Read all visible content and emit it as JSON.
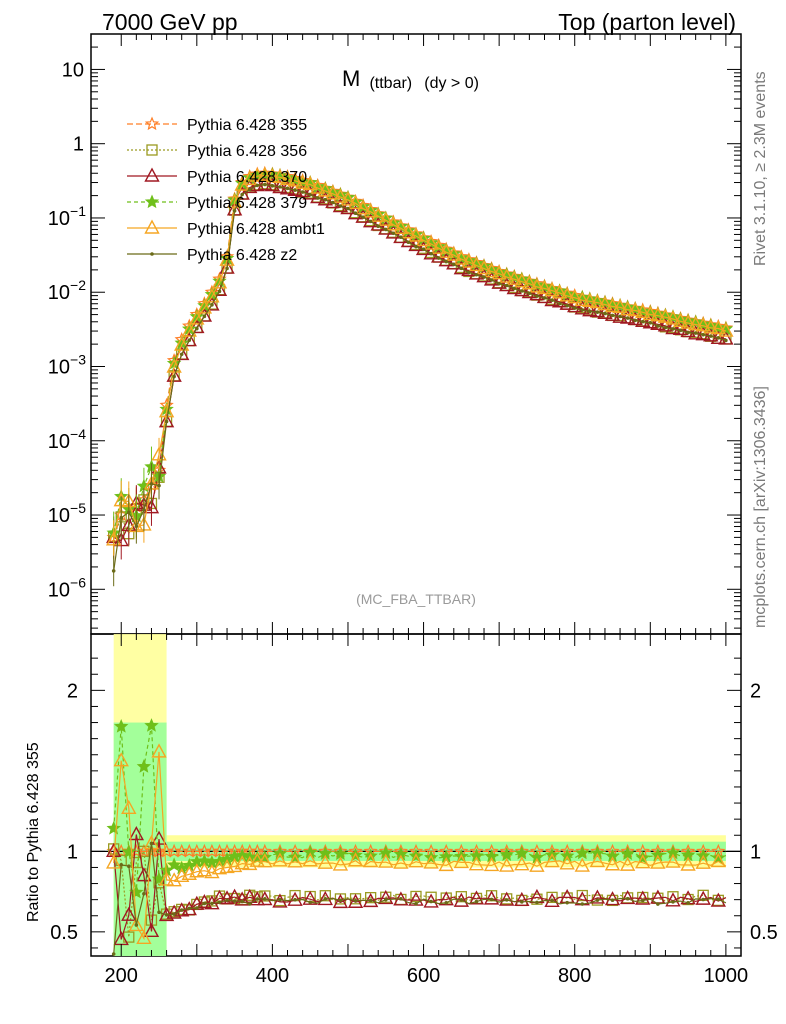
{
  "header": {
    "left": "7000 GeV pp",
    "right": "Top (parton level)"
  },
  "side_text": {
    "rivet": "Rivet 3.1.10, ≥ 2.3M events",
    "mcplots": "mcplots.cern.ch [arXiv:1306.3436]"
  },
  "chart_data": {
    "type": "line",
    "title": "M",
    "title_sub": "(ttbar)",
    "title_cond": "(dy > 0)",
    "analysis_tag": "(MC_FBA_TTBAR)",
    "xlabel": "",
    "ylabel_ratio": "Ratio to Pythia 6.428 355",
    "xlim": [
      160,
      1020
    ],
    "ylim_main": [
      2.5e-07,
      30
    ],
    "ylim_ratio": [
      0.35,
      2.35
    ],
    "x_ticks": [
      "200",
      "400",
      "600",
      "800",
      "1000"
    ],
    "y_ticks_main": [
      {
        "value": 10,
        "mant": "10",
        "exp": ""
      },
      {
        "value": 1,
        "mant": "1",
        "exp": ""
      },
      {
        "value": 0.1,
        "mant": "10",
        "exp": "−1"
      },
      {
        "value": 0.01,
        "mant": "10",
        "exp": "−2"
      },
      {
        "value": 0.001,
        "mant": "10",
        "exp": "−3"
      },
      {
        "value": 0.0001,
        "mant": "10",
        "exp": "−4"
      },
      {
        "value": 1e-05,
        "mant": "10",
        "exp": "−5"
      },
      {
        "value": 1e-06,
        "mant": "10",
        "exp": "−6"
      }
    ],
    "y_ticks_ratio": [
      "0.5",
      "1",
      "2"
    ],
    "reference": {
      "name": "Pythia 6.428 355",
      "x": [
        190,
        200,
        210,
        220,
        230,
        240,
        250,
        260,
        270,
        280,
        290,
        300,
        310,
        320,
        330,
        340,
        350,
        360,
        370,
        380,
        390,
        400,
        420,
        450,
        500,
        550,
        600,
        650,
        700,
        750,
        800,
        850,
        900,
        950,
        1000
      ],
      "y": [
        5e-06,
        1e-05,
        1.2e-05,
        1.3e-05,
        1.6e-05,
        2.5e-05,
        4e-05,
        0.0003,
        0.0012,
        0.0023,
        0.0035,
        0.005,
        0.007,
        0.01,
        0.015,
        0.03,
        0.18,
        0.3,
        0.36,
        0.39,
        0.4,
        0.39,
        0.36,
        0.3,
        0.19,
        0.1,
        0.054,
        0.03,
        0.019,
        0.013,
        0.009,
        0.007,
        0.0055,
        0.0042,
        0.0033
      ]
    },
    "series": [
      {
        "name": "Pythia 6.428 355",
        "color": "#ff7f27",
        "marker": "star-open",
        "dash": "6,3",
        "ratio_shape": "flat",
        "ratio_level": 1.0
      },
      {
        "name": "Pythia 6.428 356",
        "color": "#9a9a20",
        "marker": "square-open",
        "dash": "2,2",
        "ratio_shape": "low",
        "ratio_level": 0.71
      },
      {
        "name": "Pythia 6.428 370",
        "color": "#a01822",
        "marker": "triangle-open",
        "dash": "",
        "ratio_shape": "low",
        "ratio_level": 0.7
      },
      {
        "name": "Pythia 6.428 379",
        "color": "#6fbf1a",
        "marker": "star-filled",
        "dash": "4,3",
        "ratio_shape": "near",
        "ratio_level": 0.975
      },
      {
        "name": "Pythia 6.428 ambt1",
        "color": "#f5a623",
        "marker": "triangle-open",
        "dash": "",
        "ratio_shape": "mid",
        "ratio_level": 0.925
      },
      {
        "name": "Pythia 6.428 z2",
        "color": "#6b6b18",
        "marker": "dot",
        "dash": "",
        "ratio_shape": "low",
        "ratio_level": 0.69
      }
    ],
    "ratio_band_colors": {
      "outer": "#ffff99",
      "inner": "#99ff99"
    }
  }
}
